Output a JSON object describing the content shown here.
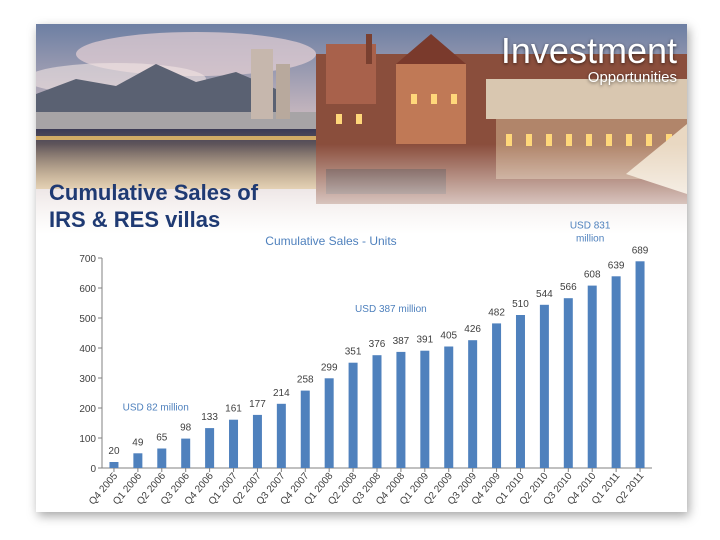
{
  "header": {
    "title": "Investment",
    "subtitle": "Opportunities"
  },
  "slide_heading": [
    "Cumulative Sales of",
    "IRS & RES villas"
  ],
  "colors": {
    "bar": "#4f81bd",
    "heading": "#1f3a73",
    "annotation": "#4f81bd",
    "text": "#404040"
  },
  "chart_data": {
    "type": "bar",
    "title": "Cumulative Sales - Units",
    "xlabel": "",
    "ylabel": "",
    "ylim": [
      0,
      700
    ],
    "yticks": [
      0,
      100,
      200,
      300,
      400,
      500,
      600,
      700
    ],
    "grid": false,
    "legend": "none",
    "categories": [
      "Q4 2005",
      "Q1 2006",
      "Q2 2006",
      "Q3 2006",
      "Q4 2006",
      "Q1 2007",
      "Q2 2007",
      "Q3 2007",
      "Q4 2007",
      "Q1 2008",
      "Q2 2008",
      "Q3 2008",
      "Q4 2008",
      "Q1 2009",
      "Q2 2009",
      "Q3 2009",
      "Q4 2009",
      "Q1 2010",
      "Q2 2010",
      "Q3 2010",
      "Q4 2010",
      "Q1 2011",
      "Q2 2011"
    ],
    "values": [
      20,
      49,
      65,
      98,
      133,
      161,
      177,
      214,
      258,
      299,
      351,
      376,
      387,
      391,
      405,
      426,
      482,
      510,
      544,
      566,
      608,
      639,
      689
    ],
    "annotations": [
      {
        "text": "USD 82 million",
        "category": "Q3 2006"
      },
      {
        "text": "USD 387 million",
        "category": "Q4 2008"
      },
      {
        "text": "USD 831",
        "category": "Q1 2011"
      },
      {
        "text": "million",
        "category": "Q1 2011"
      }
    ]
  }
}
